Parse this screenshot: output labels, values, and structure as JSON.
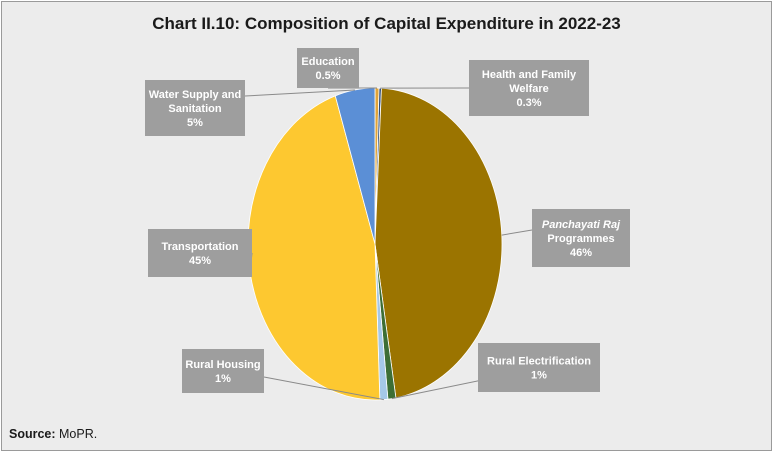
{
  "chart_data": {
    "type": "pie",
    "title": "Chart II.10: Composition of Capital Expenditure in 2022-23",
    "slices": [
      {
        "label": "Education",
        "label_lines": [
          "Education",
          "0.5%"
        ],
        "value": 0.5,
        "value_label": "0.5%",
        "color": "#e0a43a"
      },
      {
        "label": "Health and Family Welfare",
        "label_lines": [
          "Health and Family",
          "Welfare",
          "0.3%"
        ],
        "value": 0.3,
        "value_label": "0.3%",
        "color": "#2e4c7a"
      },
      {
        "label": "Panchayati Raj Programmes",
        "label_lines": [
          "Panchayati Raj",
          "Programmes",
          "46%"
        ],
        "italic_first_line": true,
        "value": 46,
        "value_label": "46%",
        "color": "#9b7400"
      },
      {
        "label": "Rural Electrification",
        "label_lines": [
          "Rural Electrification",
          "1%"
        ],
        "value": 1,
        "value_label": "1%",
        "color": "#3d6e35"
      },
      {
        "label": "Rural Housing",
        "label_lines": [
          "Rural Housing",
          "1%"
        ],
        "value": 1,
        "value_label": "1%",
        "color": "#a5c8e8"
      },
      {
        "label": "Transportation",
        "label_lines": [
          "Transportation",
          "45%"
        ],
        "value": 45,
        "value_label": "45%",
        "color": "#fdc830"
      },
      {
        "label": "Water Supply and Sanitation",
        "label_lines": [
          "Water Supply and",
          "Sanitation",
          "5%"
        ],
        "value": 5,
        "value_label": "5%",
        "color": "#5b8fd6"
      }
    ],
    "label_box_color": "#9e9e9e",
    "background_color": "#ececec"
  },
  "source": {
    "prefix": "Source:",
    "text": " MoPR."
  }
}
